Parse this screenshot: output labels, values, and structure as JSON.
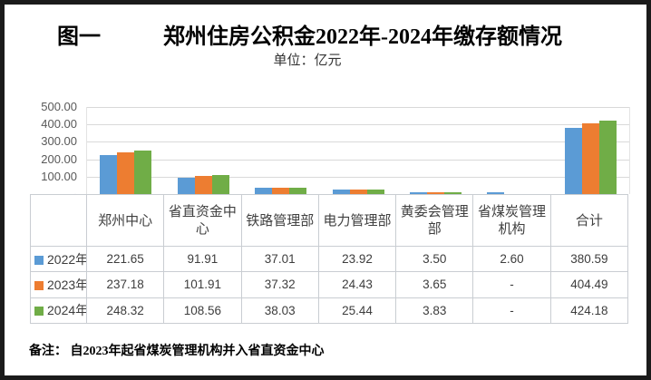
{
  "header": {
    "figure_label": "图一",
    "title": "郑州住房公积金2022年-2024年缴存额情况",
    "subtitle": "单位：亿元"
  },
  "note": "备注： 自2023年起省煤炭管理机构并入省直资金中心",
  "colors": {
    "series_2022": "#5B9BD5",
    "series_2023": "#ED7D31",
    "series_2024": "#70AD47",
    "gridline": "#D9D9D9",
    "table_border": "#C9CDD2",
    "axis_text": "#595959"
  },
  "chart_data": {
    "type": "bar",
    "title": "郑州住房公积金2022年-2024年缴存额情况",
    "unit": "亿元",
    "categories": [
      "郑州中心",
      "省直资金中心",
      "铁路管理部",
      "电力管理部",
      "黄委会管理部",
      "省煤炭管理机构",
      "合计"
    ],
    "series": [
      {
        "name": "2022年",
        "color": "#5B9BD5",
        "values": [
          221.65,
          91.91,
          37.01,
          23.92,
          3.5,
          2.6,
          380.59
        ],
        "display": [
          "221.65",
          "91.91",
          "37.01",
          "23.92",
          "3.50",
          "2.60",
          "380.59"
        ]
      },
      {
        "name": "2023年",
        "color": "#ED7D31",
        "values": [
          237.18,
          101.91,
          37.32,
          24.43,
          3.65,
          null,
          404.49
        ],
        "display": [
          "237.18",
          "101.91",
          "37.32",
          "24.43",
          "3.65",
          "-",
          "404.49"
        ]
      },
      {
        "name": "2024年",
        "color": "#70AD47",
        "values": [
          248.32,
          108.56,
          38.03,
          25.44,
          3.83,
          null,
          424.18
        ],
        "display": [
          "248.32",
          "108.56",
          "38.03",
          "25.44",
          "3.83",
          "-",
          "424.18"
        ]
      }
    ],
    "ylim": [
      0,
      500
    ],
    "ytick_labels": [
      "500.00",
      "400.00",
      "300.00",
      "200.00",
      "100.00",
      "-"
    ],
    "grid": true,
    "legend_position": "table-rows-left"
  }
}
